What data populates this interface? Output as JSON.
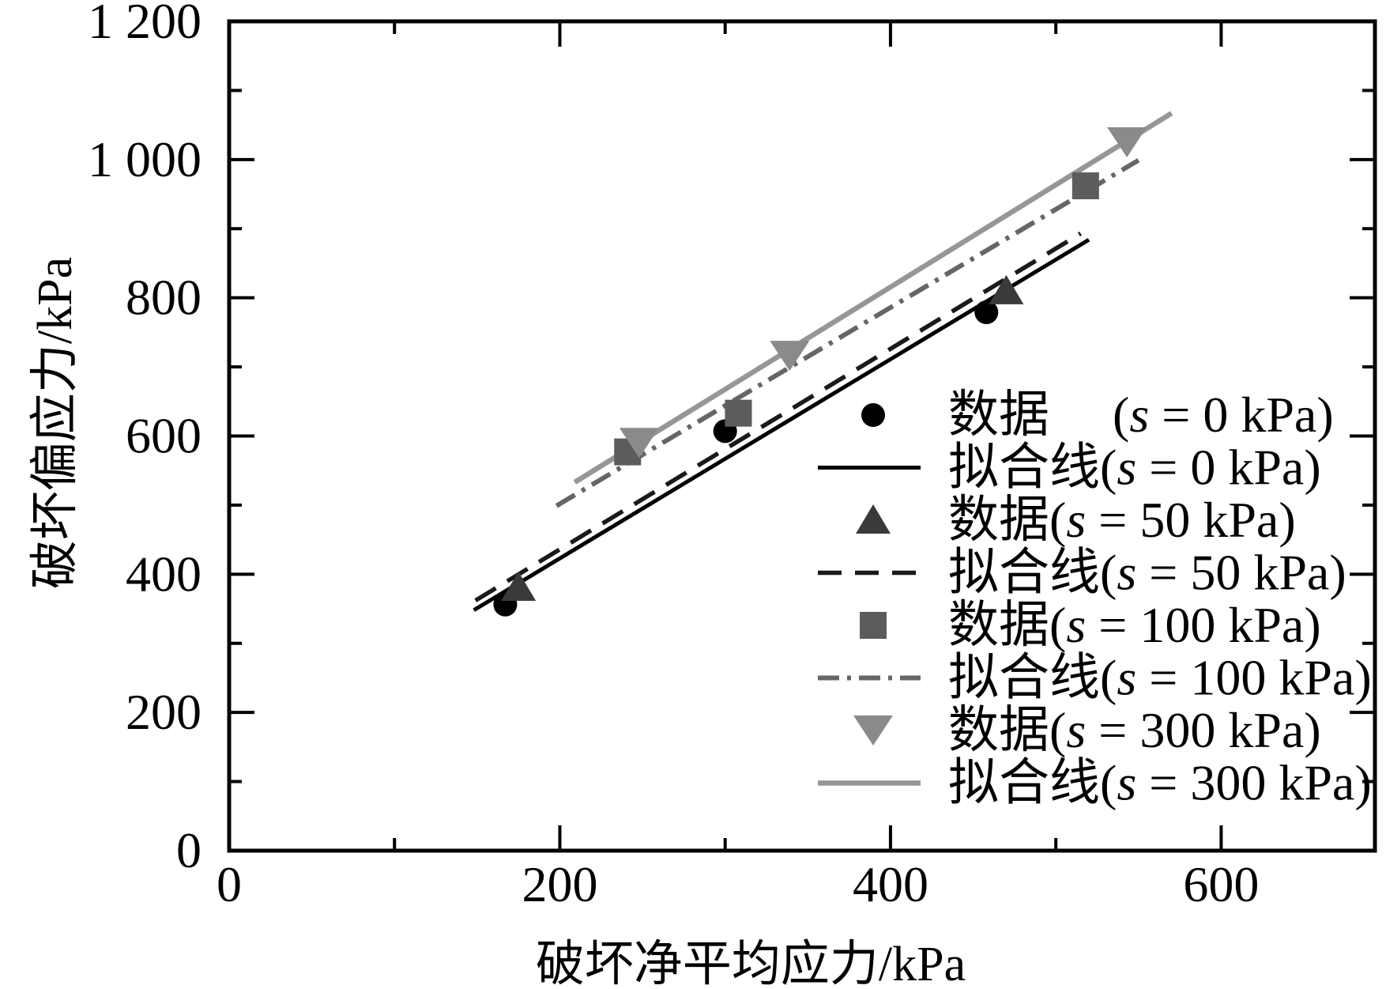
{
  "figure": {
    "background": "#ffffff",
    "axis_color": "#000000"
  },
  "chart_data": {
    "type": "scatter",
    "title": "",
    "xlabel": "破坏净平均应力/kPa",
    "ylabel": "破坏偏应力/kPa",
    "xlim": [
      0,
      693
    ],
    "ylim": [
      0,
      1200
    ],
    "grid": false,
    "legend_position": "center-right",
    "x_ticks": {
      "major": [
        0,
        200,
        400,
        600
      ],
      "labels": [
        "0",
        "200",
        "400",
        "600"
      ],
      "minor": [
        100,
        300,
        500
      ]
    },
    "y_ticks": {
      "major": [
        0,
        200,
        400,
        600,
        800,
        1000,
        1200
      ],
      "labels": [
        "0",
        "200",
        "400",
        "600",
        "800",
        "1 000",
        "1 200"
      ],
      "minor": [
        100,
        300,
        500,
        700,
        900,
        1100
      ]
    },
    "series": [
      {
        "id": "data-s0",
        "name": "数据 (s = 0 kPa)",
        "kind": "scatter",
        "marker": "circle",
        "color": "#000000",
        "points": [
          [
            167,
            356
          ],
          [
            300,
            607
          ],
          [
            458,
            779
          ]
        ]
      },
      {
        "id": "fit-s0",
        "name": "拟合线(s = 0 kPa)",
        "kind": "line",
        "style": "solid",
        "color": "#000000",
        "width": 5,
        "points": [
          [
            148,
            348
          ],
          [
            520,
            884
          ]
        ]
      },
      {
        "id": "data-s50",
        "name": "数据(s = 50 kPa)",
        "kind": "scatter",
        "marker": "triangle-up",
        "color": "#3a3a3a",
        "points": [
          [
            175,
            381
          ],
          [
            470,
            810
          ]
        ]
      },
      {
        "id": "fit-s50",
        "name": "拟合线(s = 50 kPa)",
        "kind": "line",
        "style": "dashed",
        "color": "#1a1a1a",
        "width": 5.5,
        "points": [
          [
            149,
            362
          ],
          [
            515,
            893
          ]
        ]
      },
      {
        "id": "data-s100",
        "name": "数据(s = 100 kPa)",
        "kind": "scatter",
        "marker": "square",
        "color": "#5c5c5c",
        "points": [
          [
            241,
            577
          ],
          [
            308,
            633
          ],
          [
            518,
            962
          ]
        ]
      },
      {
        "id": "fit-s100",
        "name": "拟合线(s = 100 kPa)",
        "kind": "line",
        "style": "dashdot",
        "color": "#666666",
        "width": 6,
        "points": [
          [
            198,
            499
          ],
          [
            550,
            999
          ]
        ]
      },
      {
        "id": "data-s300",
        "name": "数据(s = 300 kPa)",
        "kind": "scatter",
        "marker": "triangle-down",
        "color": "#8a8a8a",
        "points": [
          [
            248,
            590
          ],
          [
            339,
            716
          ],
          [
            543,
            1025
          ]
        ]
      },
      {
        "id": "fit-s300",
        "name": "拟合线(s = 300 kPa)",
        "kind": "line",
        "style": "solid",
        "color": "#969696",
        "width": 6.5,
        "points": [
          [
            209,
            533
          ],
          [
            570,
            1067
          ]
        ]
      }
    ]
  },
  "legend": {
    "entries": [
      {
        "id": "legend-data-s0",
        "marker": "circle",
        "color": "#000000",
        "parts": [
          {
            "t": "数据　 ("
          },
          {
            "t": "s",
            "i": true
          },
          {
            "t": " = 0 kPa)"
          }
        ]
      },
      {
        "id": "legend-fit-s0",
        "line": "solid",
        "color": "#000000",
        "width": 5,
        "parts": [
          {
            "t": "拟合线("
          },
          {
            "t": "s",
            "i": true
          },
          {
            "t": " = 0 kPa)"
          }
        ]
      },
      {
        "id": "legend-data-s50",
        "marker": "triangle-up",
        "color": "#3a3a3a",
        "parts": [
          {
            "t": "数据("
          },
          {
            "t": "s",
            "i": true
          },
          {
            "t": " = 50 kPa)"
          }
        ]
      },
      {
        "id": "legend-fit-s50",
        "line": "dashed",
        "color": "#1a1a1a",
        "width": 5.5,
        "parts": [
          {
            "t": "拟合线("
          },
          {
            "t": "s",
            "i": true
          },
          {
            "t": " = 50 kPa)"
          }
        ]
      },
      {
        "id": "legend-data-s100",
        "marker": "square",
        "color": "#5c5c5c",
        "parts": [
          {
            "t": "数据("
          },
          {
            "t": "s",
            "i": true
          },
          {
            "t": " = 100 kPa)"
          }
        ]
      },
      {
        "id": "legend-fit-s100",
        "line": "dashdot",
        "color": "#666666",
        "width": 6,
        "parts": [
          {
            "t": "拟合线("
          },
          {
            "t": "s",
            "i": true
          },
          {
            "t": " = 100 kPa)"
          }
        ]
      },
      {
        "id": "legend-data-s300",
        "marker": "triangle-down",
        "color": "#8a8a8a",
        "parts": [
          {
            "t": "数据("
          },
          {
            "t": "s",
            "i": true
          },
          {
            "t": " = 300 kPa)"
          }
        ]
      },
      {
        "id": "legend-fit-s300",
        "line": "solid",
        "color": "#969696",
        "width": 6.5,
        "parts": [
          {
            "t": "拟合线("
          },
          {
            "t": "s",
            "i": true
          },
          {
            "t": " = 300 kPa)"
          }
        ]
      }
    ]
  }
}
